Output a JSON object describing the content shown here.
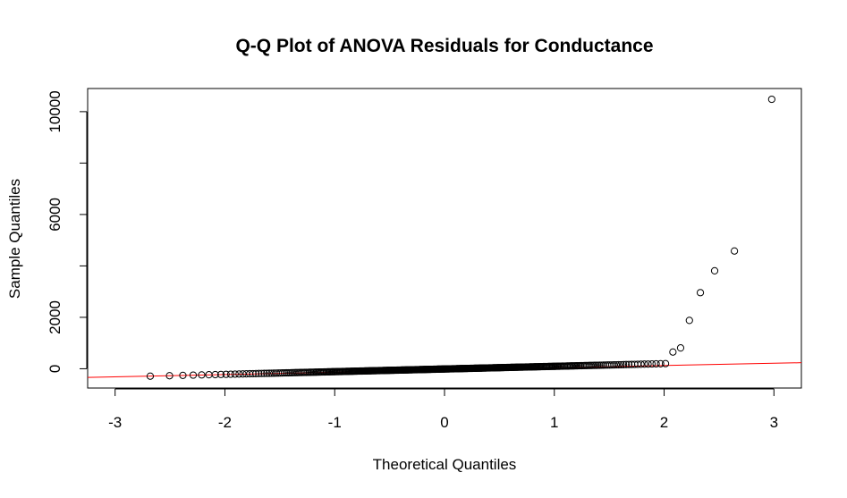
{
  "chart_data": {
    "type": "scatter",
    "title": "Q-Q Plot of ANOVA Residuals for Conductance",
    "xlabel": "Theoretical Quantiles",
    "ylabel": "Sample Quantiles",
    "xlim": [
      -3.25,
      3.25
    ],
    "ylim": [
      -750,
      10900
    ],
    "x_ticks": [
      -3,
      -2,
      -1,
      0,
      1,
      2,
      3
    ],
    "x_tick_labels": [
      "-3",
      "-2",
      "-1",
      "0",
      "1",
      "2",
      "3"
    ],
    "y_ticks": [
      0,
      2000,
      4000,
      6000,
      8000,
      10000
    ],
    "y_tick_labels": [
      "0",
      "2000",
      "",
      "6000",
      "",
      "10000"
    ],
    "series": [
      {
        "marker": "open-circle",
        "color": "#000000",
        "outliers": [
          {
            "x": 2.08,
            "y": 650
          },
          {
            "x": 2.15,
            "y": 810
          },
          {
            "x": 2.23,
            "y": 1880
          },
          {
            "x": 2.33,
            "y": 2960
          },
          {
            "x": 2.46,
            "y": 3810
          },
          {
            "x": 2.64,
            "y": 4580
          },
          {
            "x": 2.98,
            "y": 10480
          }
        ],
        "bulk": {
          "n": 400,
          "x_from": -2.98,
          "x_to": 2.02,
          "y_at_x_min": -320,
          "y_at_x_max": 200
        }
      }
    ],
    "reference_line": {
      "color": "#ff0000",
      "x1": -3.25,
      "y1": -335,
      "x2": 3.25,
      "y2": 235
    },
    "grid": false,
    "legend": "none"
  }
}
